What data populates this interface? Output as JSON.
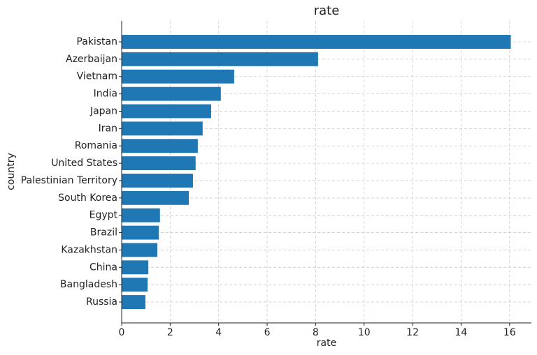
{
  "chart_data": {
    "type": "barh",
    "title": "rate",
    "x_label": "rate",
    "y_label": "country",
    "categories": [
      "Pakistan",
      "Azerbaijan",
      "Vietnam",
      "India",
      "Japan",
      "Iran",
      "Romania",
      "United States",
      "Palestinian Territory",
      "South Korea",
      "Egypt",
      "Brazil",
      "Kazakhstan",
      "China",
      "Bangladesh",
      "Russia"
    ],
    "values": [
      16.05,
      8.1,
      4.64,
      4.09,
      3.69,
      3.34,
      3.14,
      3.05,
      2.94,
      2.77,
      1.58,
      1.53,
      1.47,
      1.1,
      1.07,
      0.98
    ],
    "color": "#1f77b4",
    "xlim": [
      0,
      16.9
    ],
    "xticks": [
      0,
      2,
      4,
      6,
      8,
      10,
      12,
      14,
      16
    ],
    "grid": true
  }
}
